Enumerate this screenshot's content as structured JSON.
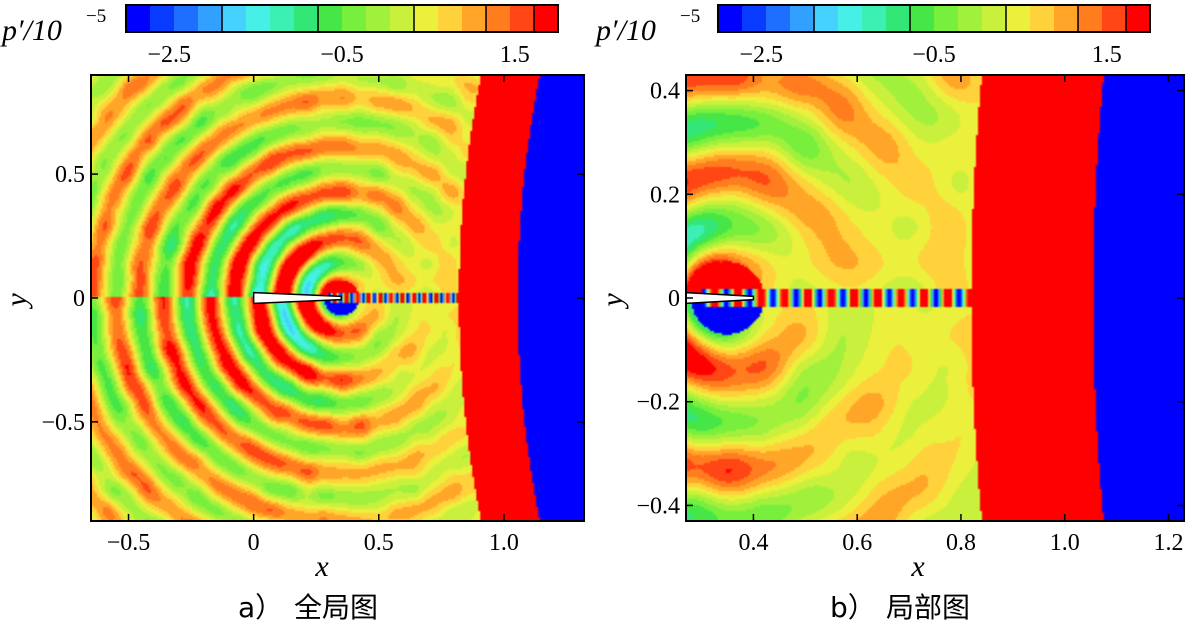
{
  "chart_data": [
    {
      "type": "heatmap",
      "panel_label": "a）",
      "caption": "全局图",
      "xlabel": "x",
      "ylabel": "y",
      "xlim": [
        -0.65,
        1.32
      ],
      "ylim": [
        -0.9,
        0.9
      ],
      "xticks": [
        -0.5,
        0,
        0.5,
        1.0
      ],
      "xtick_labels": [
        "−0.5",
        "0",
        "0.5",
        "1.0"
      ],
      "yticks": [
        -0.5,
        0,
        0.5
      ],
      "ytick_labels": [
        "−0.5",
        "0",
        "0.5"
      ],
      "colorbar": {
        "title": "p′/10",
        "exponent": "−5",
        "tick_labels": [
          "−2.5",
          "−0.5",
          "1.5"
        ],
        "tick_values": [
          -2.5,
          -0.5,
          1.5
        ],
        "range": [
          -3.0,
          2.0
        ]
      },
      "field": {
        "description_values": "pressure perturbation contour",
        "wave_center": [
          0.35,
          0.0
        ],
        "shock_x_at_centerline": 1.02,
        "shock_curvature": 0.11,
        "body_x": [
          0.0,
          0.35
        ]
      }
    },
    {
      "type": "heatmap",
      "panel_label": "b）",
      "caption": "局部图",
      "xlabel": "x",
      "ylabel": "y",
      "xlim": [
        0.27,
        1.23
      ],
      "ylim": [
        -0.43,
        0.43
      ],
      "xticks": [
        0.4,
        0.6,
        0.8,
        1.0,
        1.2
      ],
      "xtick_labels": [
        "0.4",
        "0.6",
        "0.8",
        "1.0",
        "1.2"
      ],
      "yticks": [
        -0.4,
        -0.2,
        0,
        0.2,
        0.4
      ],
      "ytick_labels": [
        "−0.4",
        "−0.2",
        "0",
        "0.2",
        "0.4"
      ],
      "colorbar": {
        "title": "p′/10",
        "exponent": "−5",
        "tick_labels": [
          "−2.5",
          "−0.5",
          "1.5"
        ],
        "tick_values": [
          -2.5,
          -0.5,
          1.5
        ],
        "range": [
          -3.0,
          2.0
        ]
      },
      "field": {
        "wave_center": [
          0.35,
          0.0
        ],
        "shock_x_at_centerline": 1.02,
        "shock_curvature": 0.11,
        "body_x": [
          0.27,
          0.4
        ]
      }
    }
  ],
  "colormap": [
    "#0000ff",
    "#0a3cff",
    "#1e6eff",
    "#32a0ff",
    "#46d2ff",
    "#46f0e6",
    "#3cf0b4",
    "#32e678",
    "#46e646",
    "#78ef3c",
    "#a0f03c",
    "#c8f03c",
    "#ebf03c",
    "#ffd23c",
    "#ffa528",
    "#ff7d1e",
    "#ff4614",
    "#ff0000"
  ]
}
